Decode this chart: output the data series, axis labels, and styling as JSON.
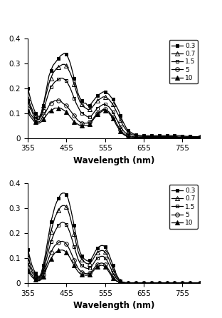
{
  "xlim": [
    355,
    800
  ],
  "ylim": [
    0,
    0.4
  ],
  "xlabel": "Wavelength (nm)",
  "xticks": [
    355,
    455,
    555,
    655,
    755
  ],
  "yticks": [
    0,
    0.1,
    0.2,
    0.3,
    0.4
  ],
  "legend_labels": [
    "0.3",
    "0.7",
    "1.5",
    "5",
    "10"
  ],
  "top_series": {
    "x": [
      355,
      360,
      365,
      370,
      375,
      380,
      385,
      390,
      395,
      400,
      405,
      410,
      415,
      420,
      425,
      430,
      435,
      440,
      445,
      450,
      455,
      460,
      465,
      470,
      475,
      480,
      485,
      490,
      495,
      500,
      505,
      510,
      515,
      520,
      525,
      530,
      535,
      540,
      545,
      550,
      555,
      560,
      565,
      570,
      575,
      580,
      585,
      590,
      595,
      600,
      605,
      610,
      615,
      620,
      625,
      630,
      635,
      640,
      645,
      650,
      655,
      660,
      665,
      670,
      675,
      680,
      685,
      690,
      695,
      700,
      705,
      710,
      715,
      720,
      725,
      730,
      735,
      740,
      745,
      750,
      755,
      760,
      765,
      770,
      775,
      780,
      785,
      790,
      795,
      800
    ],
    "curves": [
      [
        0.2,
        0.17,
        0.14,
        0.12,
        0.1,
        0.09,
        0.085,
        0.1,
        0.13,
        0.17,
        0.21,
        0.25,
        0.27,
        0.29,
        0.3,
        0.31,
        0.32,
        0.33,
        0.335,
        0.34,
        0.335,
        0.32,
        0.3,
        0.27,
        0.24,
        0.21,
        0.18,
        0.16,
        0.15,
        0.14,
        0.14,
        0.13,
        0.13,
        0.14,
        0.15,
        0.16,
        0.17,
        0.175,
        0.18,
        0.185,
        0.185,
        0.18,
        0.175,
        0.165,
        0.155,
        0.14,
        0.125,
        0.11,
        0.09,
        0.07,
        0.055,
        0.04,
        0.03,
        0.025,
        0.02,
        0.015,
        0.013,
        0.012,
        0.011,
        0.01,
        0.01,
        0.01,
        0.01,
        0.01,
        0.01,
        0.01,
        0.01,
        0.01,
        0.01,
        0.01,
        0.01,
        0.01,
        0.01,
        0.01,
        0.01,
        0.01,
        0.01,
        0.01,
        0.01,
        0.01,
        0.008,
        0.008,
        0.007,
        0.007,
        0.007,
        0.007,
        0.006,
        0.006,
        0.006,
        0.005
      ],
      [
        0.16,
        0.14,
        0.12,
        0.1,
        0.09,
        0.08,
        0.08,
        0.1,
        0.13,
        0.16,
        0.19,
        0.22,
        0.24,
        0.26,
        0.27,
        0.28,
        0.285,
        0.29,
        0.295,
        0.295,
        0.29,
        0.275,
        0.26,
        0.24,
        0.215,
        0.19,
        0.165,
        0.145,
        0.135,
        0.125,
        0.12,
        0.115,
        0.115,
        0.12,
        0.13,
        0.14,
        0.15,
        0.155,
        0.16,
        0.165,
        0.165,
        0.16,
        0.155,
        0.145,
        0.135,
        0.12,
        0.105,
        0.09,
        0.072,
        0.055,
        0.042,
        0.032,
        0.024,
        0.018,
        0.014,
        0.011,
        0.009,
        0.008,
        0.007,
        0.007,
        0.006,
        0.006,
        0.006,
        0.006,
        0.006,
        0.006,
        0.006,
        0.006,
        0.006,
        0.006,
        0.006,
        0.006,
        0.006,
        0.006,
        0.006,
        0.006,
        0.006,
        0.006,
        0.005,
        0.005,
        0.005,
        0.005,
        0.005,
        0.005,
        0.005,
        0.005,
        0.005,
        0.005,
        0.005,
        0.005
      ],
      [
        0.15,
        0.13,
        0.11,
        0.09,
        0.08,
        0.075,
        0.075,
        0.09,
        0.11,
        0.135,
        0.16,
        0.185,
        0.205,
        0.215,
        0.225,
        0.23,
        0.235,
        0.24,
        0.24,
        0.235,
        0.23,
        0.215,
        0.2,
        0.18,
        0.16,
        0.14,
        0.125,
        0.11,
        0.1,
        0.095,
        0.09,
        0.085,
        0.085,
        0.09,
        0.1,
        0.11,
        0.12,
        0.125,
        0.13,
        0.135,
        0.135,
        0.13,
        0.125,
        0.115,
        0.105,
        0.09,
        0.075,
        0.06,
        0.046,
        0.034,
        0.025,
        0.018,
        0.013,
        0.009,
        0.007,
        0.005,
        0.004,
        0.004,
        0.003,
        0.003,
        0.003,
        0.003,
        0.003,
        0.003,
        0.003,
        0.003,
        0.003,
        0.003,
        0.003,
        0.003,
        0.003,
        0.003,
        0.003,
        0.003,
        0.003,
        0.003,
        0.003,
        0.003,
        0.003,
        0.003,
        0.003,
        0.003,
        0.003,
        0.003,
        0.003,
        0.003,
        0.003,
        0.003,
        0.003,
        0.003
      ],
      [
        0.12,
        0.1,
        0.09,
        0.08,
        0.07,
        0.065,
        0.065,
        0.075,
        0.09,
        0.1,
        0.115,
        0.13,
        0.14,
        0.145,
        0.15,
        0.15,
        0.15,
        0.15,
        0.14,
        0.135,
        0.13,
        0.12,
        0.11,
        0.1,
        0.09,
        0.08,
        0.07,
        0.065,
        0.06,
        0.06,
        0.06,
        0.06,
        0.065,
        0.07,
        0.08,
        0.09,
        0.1,
        0.105,
        0.11,
        0.115,
        0.115,
        0.11,
        0.105,
        0.095,
        0.085,
        0.072,
        0.058,
        0.044,
        0.033,
        0.023,
        0.016,
        0.011,
        0.007,
        0.005,
        0.004,
        0.003,
        0.002,
        0.002,
        0.002,
        0.002,
        0.002,
        0.002,
        0.002,
        0.002,
        0.002,
        0.002,
        0.002,
        0.002,
        0.002,
        0.002,
        0.002,
        0.002,
        0.002,
        0.002,
        0.002,
        0.002,
        0.002,
        0.002,
        0.002,
        0.002,
        0.002,
        0.002,
        0.002,
        0.002,
        0.002,
        0.002,
        0.002,
        0.002,
        0.002,
        0.002
      ],
      [
        0.11,
        0.09,
        0.08,
        0.07,
        0.065,
        0.06,
        0.06,
        0.065,
        0.075,
        0.085,
        0.095,
        0.105,
        0.11,
        0.115,
        0.12,
        0.12,
        0.12,
        0.12,
        0.115,
        0.11,
        0.105,
        0.095,
        0.085,
        0.075,
        0.065,
        0.06,
        0.055,
        0.05,
        0.05,
        0.05,
        0.05,
        0.05,
        0.055,
        0.065,
        0.075,
        0.085,
        0.095,
        0.1,
        0.105,
        0.11,
        0.11,
        0.105,
        0.1,
        0.09,
        0.08,
        0.065,
        0.05,
        0.038,
        0.027,
        0.018,
        0.012,
        0.008,
        0.005,
        0.003,
        0.002,
        0.002,
        0.001,
        0.001,
        0.001,
        0.001,
        0.001,
        0.001,
        0.001,
        0.001,
        0.001,
        0.001,
        0.001,
        0.001,
        0.001,
        0.001,
        0.001,
        0.001,
        0.001,
        0.001,
        0.001,
        0.001,
        0.001,
        0.001,
        0.001,
        0.001,
        0.001,
        0.001,
        0.001,
        0.001,
        0.001,
        0.001,
        0.001,
        0.001,
        0.001,
        0.001
      ]
    ]
  },
  "bottom_series": {
    "x": [
      355,
      360,
      365,
      370,
      375,
      380,
      385,
      390,
      395,
      400,
      405,
      410,
      415,
      420,
      425,
      430,
      435,
      440,
      445,
      450,
      455,
      460,
      465,
      470,
      475,
      480,
      485,
      490,
      495,
      500,
      505,
      510,
      515,
      520,
      525,
      530,
      535,
      540,
      545,
      550,
      555,
      560,
      565,
      570,
      575,
      580,
      585,
      590,
      595,
      600,
      605,
      610,
      615,
      620,
      625,
      630,
      635,
      640,
      645,
      650,
      655,
      660,
      665,
      670,
      675,
      680,
      685,
      690,
      695,
      700,
      705,
      710,
      715,
      720,
      725,
      730,
      735,
      740,
      745,
      750,
      755,
      760,
      765,
      770,
      775,
      780,
      785,
      790,
      795,
      800
    ],
    "curves": [
      [
        0.135,
        0.105,
        0.075,
        0.055,
        0.04,
        0.03,
        0.025,
        0.04,
        0.07,
        0.11,
        0.155,
        0.2,
        0.245,
        0.275,
        0.305,
        0.325,
        0.34,
        0.355,
        0.36,
        0.36,
        0.355,
        0.335,
        0.305,
        0.268,
        0.23,
        0.188,
        0.152,
        0.125,
        0.108,
        0.098,
        0.092,
        0.088,
        0.09,
        0.098,
        0.112,
        0.128,
        0.14,
        0.146,
        0.15,
        0.15,
        0.145,
        0.132,
        0.115,
        0.094,
        0.072,
        0.05,
        0.032,
        0.018,
        0.009,
        0.004,
        0.002,
        0.001,
        0.001,
        0.001,
        0.001,
        0.001,
        0.001,
        0.001,
        0.001,
        0.001,
        0.001,
        0.001,
        0.001,
        0.001,
        0.001,
        0.001,
        0.001,
        0.001,
        0.001,
        0.001,
        0.001,
        0.001,
        0.001,
        0.001,
        0.001,
        0.001,
        0.001,
        0.001,
        0.001,
        0.001,
        0.001,
        0.001,
        0.001,
        0.001,
        0.001,
        0.001,
        0.001,
        0.001,
        0.001,
        0.001
      ],
      [
        0.105,
        0.082,
        0.058,
        0.042,
        0.032,
        0.025,
        0.02,
        0.032,
        0.058,
        0.092,
        0.13,
        0.168,
        0.205,
        0.235,
        0.262,
        0.278,
        0.292,
        0.305,
        0.31,
        0.31,
        0.305,
        0.288,
        0.262,
        0.23,
        0.196,
        0.16,
        0.128,
        0.106,
        0.095,
        0.086,
        0.08,
        0.077,
        0.078,
        0.086,
        0.098,
        0.112,
        0.122,
        0.127,
        0.13,
        0.13,
        0.124,
        0.112,
        0.096,
        0.076,
        0.058,
        0.04,
        0.025,
        0.014,
        0.007,
        0.003,
        0.002,
        0.001,
        0.001,
        0.001,
        0.001,
        0.001,
        0.001,
        0.001,
        0.001,
        0.001,
        0.001,
        0.001,
        0.001,
        0.001,
        0.001,
        0.001,
        0.001,
        0.001,
        0.001,
        0.001,
        0.001,
        0.001,
        0.001,
        0.001,
        0.001,
        0.001,
        0.001,
        0.001,
        0.001,
        0.001,
        0.001,
        0.001,
        0.001,
        0.001,
        0.001,
        0.001,
        0.001,
        0.001,
        0.001,
        0.001
      ],
      [
        0.085,
        0.066,
        0.046,
        0.033,
        0.026,
        0.02,
        0.016,
        0.026,
        0.046,
        0.074,
        0.106,
        0.136,
        0.164,
        0.186,
        0.206,
        0.22,
        0.232,
        0.24,
        0.244,
        0.241,
        0.234,
        0.218,
        0.198,
        0.172,
        0.146,
        0.12,
        0.096,
        0.08,
        0.07,
        0.064,
        0.06,
        0.058,
        0.06,
        0.067,
        0.078,
        0.09,
        0.099,
        0.104,
        0.107,
        0.107,
        0.101,
        0.09,
        0.075,
        0.058,
        0.042,
        0.028,
        0.017,
        0.01,
        0.005,
        0.002,
        0.001,
        0.001,
        0.001,
        0.001,
        0.001,
        0.001,
        0.001,
        0.001,
        0.001,
        0.001,
        0.001,
        0.001,
        0.001,
        0.001,
        0.001,
        0.001,
        0.001,
        0.001,
        0.001,
        0.001,
        0.001,
        0.001,
        0.001,
        0.001,
        0.001,
        0.001,
        0.001,
        0.001,
        0.001,
        0.001,
        0.001,
        0.001,
        0.001,
        0.001,
        0.001,
        0.001,
        0.001,
        0.001,
        0.001,
        0.001
      ],
      [
        0.062,
        0.048,
        0.034,
        0.024,
        0.019,
        0.015,
        0.012,
        0.019,
        0.034,
        0.056,
        0.08,
        0.103,
        0.122,
        0.138,
        0.15,
        0.156,
        0.162,
        0.166,
        0.167,
        0.164,
        0.156,
        0.144,
        0.128,
        0.11,
        0.092,
        0.075,
        0.06,
        0.05,
        0.044,
        0.04,
        0.038,
        0.037,
        0.04,
        0.046,
        0.056,
        0.066,
        0.074,
        0.078,
        0.08,
        0.079,
        0.074,
        0.064,
        0.052,
        0.038,
        0.026,
        0.016,
        0.009,
        0.005,
        0.002,
        0.001,
        0.001,
        0.001,
        0.001,
        0.001,
        0.001,
        0.001,
        0.001,
        0.001,
        0.001,
        0.001,
        0.001,
        0.001,
        0.001,
        0.001,
        0.001,
        0.001,
        0.001,
        0.001,
        0.001,
        0.001,
        0.001,
        0.001,
        0.001,
        0.001,
        0.001,
        0.001,
        0.001,
        0.001,
        0.001,
        0.001,
        0.001,
        0.001,
        0.001,
        0.001,
        0.001,
        0.001,
        0.001,
        0.001,
        0.001,
        0.001
      ],
      [
        0.048,
        0.037,
        0.026,
        0.018,
        0.014,
        0.011,
        0.009,
        0.014,
        0.026,
        0.044,
        0.064,
        0.082,
        0.098,
        0.11,
        0.12,
        0.126,
        0.13,
        0.132,
        0.132,
        0.129,
        0.122,
        0.112,
        0.099,
        0.084,
        0.07,
        0.057,
        0.046,
        0.038,
        0.034,
        0.032,
        0.031,
        0.031,
        0.034,
        0.04,
        0.049,
        0.058,
        0.065,
        0.069,
        0.071,
        0.07,
        0.065,
        0.056,
        0.044,
        0.032,
        0.021,
        0.013,
        0.007,
        0.004,
        0.002,
        0.001,
        0.001,
        0.001,
        0.001,
        0.001,
        0.001,
        0.001,
        0.001,
        0.001,
        0.001,
        0.001,
        0.001,
        0.001,
        0.001,
        0.001,
        0.001,
        0.001,
        0.001,
        0.001,
        0.001,
        0.001,
        0.001,
        0.001,
        0.001,
        0.001,
        0.001,
        0.001,
        0.001,
        0.001,
        0.001,
        0.001,
        0.001,
        0.001,
        0.001,
        0.001,
        0.001,
        0.001,
        0.001,
        0.001,
        0.001,
        0.001
      ]
    ]
  },
  "marker_configs": [
    {
      "marker": "s",
      "fillstyle": "full",
      "markersize": 3.5
    },
    {
      "marker": "^",
      "fillstyle": "none",
      "markersize": 4.0
    },
    {
      "marker": "s",
      "fillstyle": "none",
      "markersize": 3.0
    },
    {
      "marker": "o",
      "fillstyle": "none",
      "markersize": 4.0
    },
    {
      "marker": "^",
      "fillstyle": "full",
      "markersize": 4.0
    }
  ],
  "marker_indices": [
    0,
    4,
    8,
    12,
    16,
    20,
    24,
    28,
    32,
    36,
    40,
    44,
    48,
    52,
    56,
    60,
    64,
    68,
    72,
    76,
    80,
    84,
    89
  ],
  "linewidth": 0.9
}
